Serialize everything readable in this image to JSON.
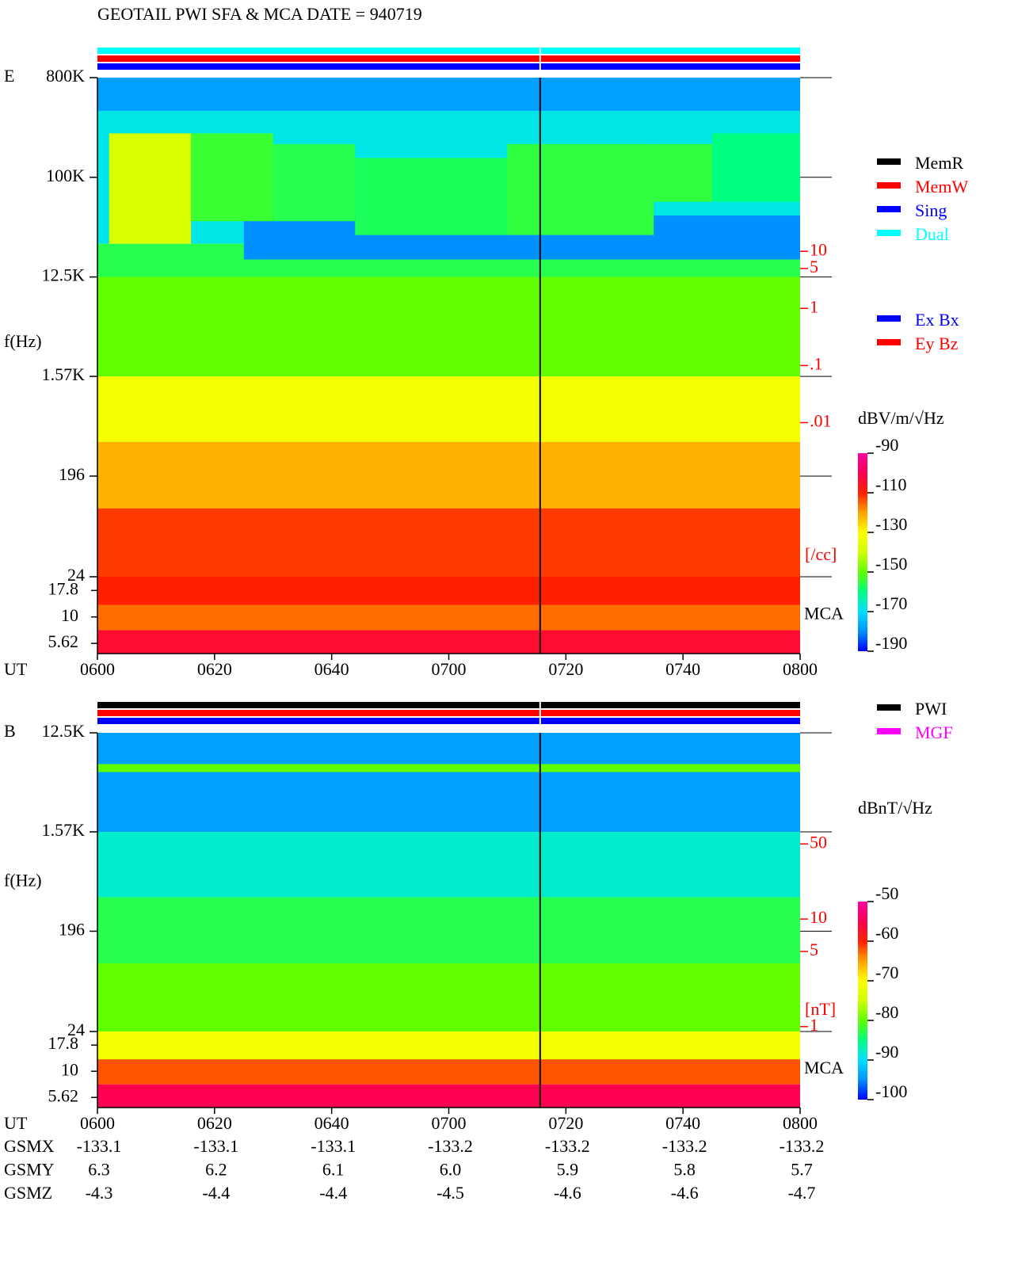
{
  "title": "GEOTAIL  PWI SFA & MCA   DATE = 940719",
  "chart_data": [
    {
      "type": "spectrogram",
      "panel_label": "E",
      "ylabel": "f(Hz)",
      "xlabel": "UT",
      "xlim": [
        360,
        480
      ],
      "xticks": [
        {
          "value": 360,
          "label": "0600"
        },
        {
          "value": 380,
          "label": "0620"
        },
        {
          "value": 400,
          "label": "0640"
        },
        {
          "value": 420,
          "label": "0700"
        },
        {
          "value": 440,
          "label": "0720"
        },
        {
          "value": 460,
          "label": "0740"
        },
        {
          "value": 480,
          "label": "0800"
        }
      ],
      "log_y": true,
      "ylim": [
        24,
        800000
      ],
      "yticks": [
        {
          "value": 800000,
          "label": "800K"
        },
        {
          "value": 100000,
          "label": "100K"
        },
        {
          "value": 12500,
          "label": "12.5K"
        },
        {
          "value": 1570,
          "label": "1.57K"
        },
        196,
        24
      ],
      "mca_label": "MCA",
      "mca_ylim": [
        4.5,
        24
      ],
      "mca_yticks": [
        17.8,
        10,
        5.62
      ],
      "y2label": "[/cc]",
      "y2lim": [
        2e-05,
        11000
      ],
      "y2ticks": [
        10,
        5,
        1,
        {
          "value": 0.1,
          "label": ".1"
        },
        {
          "value": 0.01,
          "label": ".01"
        }
      ],
      "y2color": "#ff0000",
      "colorbar_label": "dBV/m/√Hz",
      "clim": [
        -190,
        -90
      ],
      "cticks": [
        -90,
        -110,
        -130,
        -150,
        -170,
        -190
      ],
      "colormap": [
        "#0000ff",
        "#0090ff",
        "#00e0ff",
        "#00ff80",
        "#60ff00",
        "#d0ff00",
        "#ffff00",
        "#ffa000",
        "#ff2000",
        "#ff0050",
        "#ff00a0"
      ],
      "bands": [
        [
          400000,
          800000,
          -178
        ],
        [
          25000,
          400000,
          -168
        ],
        [
          12500,
          25000,
          -156
        ],
        [
          1570,
          12500,
          -150
        ],
        [
          400,
          1570,
          -132
        ],
        [
          100,
          400,
          -122
        ],
        [
          24,
          100,
          -112
        ]
      ],
      "cells": [
        [
          385,
          480,
          18000,
          45000,
          -180
        ],
        [
          362,
          376,
          25000,
          250000,
          -138
        ],
        [
          376,
          390,
          40000,
          250000,
          -154
        ],
        [
          390,
          404,
          40000,
          200000,
          -156
        ],
        [
          404,
          430,
          30000,
          150000,
          -157
        ],
        [
          430,
          455,
          30000,
          200000,
          -155
        ],
        [
          455,
          465,
          60000,
          200000,
          -155
        ],
        [
          465,
          480,
          60000,
          250000,
          -160
        ]
      ],
      "mca_bands": [
        [
          13,
          24,
          -110
        ],
        [
          7.5,
          13,
          -116
        ],
        [
          4.5,
          7.5,
          -104
        ]
      ],
      "status_bars": [
        "#00ffff",
        "#ff0000",
        "#0000ff"
      ],
      "divider_x": 435.6,
      "legends": [
        [
          {
            "name": "MemR",
            "color": "#000000"
          },
          {
            "name": "MemW",
            "color": "#ff0000"
          },
          {
            "name": "Sing",
            "color": "#0000ff"
          },
          {
            "name": "Dual",
            "color": "#00ffff"
          }
        ],
        [
          {
            "name": "Ex Bx",
            "color": "#0000ff"
          },
          {
            "name": "Ey Bz",
            "color": "#ff0000"
          }
        ]
      ]
    },
    {
      "type": "spectrogram",
      "panel_label": "B",
      "ylabel": "f(Hz)",
      "xlabel": "UT",
      "xlim": [
        360,
        480
      ],
      "xticks": [
        {
          "value": 360,
          "label": "0600"
        },
        {
          "value": 380,
          "label": "0620"
        },
        {
          "value": 400,
          "label": "0640"
        },
        {
          "value": 420,
          "label": "0700"
        },
        {
          "value": 440,
          "label": "0720"
        },
        {
          "value": 460,
          "label": "0740"
        },
        {
          "value": 480,
          "label": "0800"
        }
      ],
      "log_y": true,
      "ylim": [
        24,
        12500
      ],
      "yticks": [
        {
          "value": 12500,
          "label": "12.5K"
        },
        {
          "value": 1570,
          "label": "1.57K"
        },
        196,
        24
      ],
      "mca_label": "MCA",
      "mca_ylim": [
        4.5,
        24
      ],
      "mca_yticks": [
        17.8,
        10,
        5.62
      ],
      "y2label": "[nT]",
      "y2lim": [
        0.9,
        540
      ],
      "y2ticks": [
        50,
        10,
        5,
        1
      ],
      "y2color": "#ff0000",
      "colorbar_label": "dBnT/√Hz",
      "clim": [
        -100,
        -50
      ],
      "cticks": [
        -50,
        -60,
        -70,
        -80,
        -90,
        -100
      ],
      "colormap": [
        "#0000ff",
        "#0090ff",
        "#00e0ff",
        "#00ff80",
        "#60ff00",
        "#d0ff00",
        "#ffff00",
        "#ffa000",
        "#ff2000",
        "#ff0050",
        "#ff00a0"
      ],
      "bands": [
        [
          1570,
          12500,
          -94
        ],
        [
          400,
          1570,
          -88
        ],
        [
          100,
          400,
          -83
        ],
        [
          24,
          100,
          -80
        ],
        [
          5500,
          6500,
          -80
        ]
      ],
      "cells": [],
      "mca_bands": [
        [
          13,
          24,
          -71
        ],
        [
          7.5,
          13,
          -62
        ],
        [
          4.5,
          7.5,
          -55
        ]
      ],
      "status_bars": [
        "#000000",
        "#ff0000",
        "#0000ff"
      ],
      "divider_x": 435.6,
      "legends": [
        [
          {
            "name": "PWI",
            "color": "#000000"
          },
          {
            "name": "MGF",
            "color": "#ff00ff"
          }
        ]
      ]
    }
  ],
  "ephemeris": {
    "rows": [
      {
        "label": "GSMX",
        "values": [
          "-133.1",
          "-133.1",
          "-133.1",
          "-133.2",
          "-133.2",
          "-133.2",
          "-133.2"
        ]
      },
      {
        "label": "GSMY",
        "values": [
          "6.3",
          "6.2",
          "6.1",
          "6.0",
          "5.9",
          "5.8",
          "5.7"
        ]
      },
      {
        "label": "GSMZ",
        "values": [
          "-4.3",
          "-4.4",
          "-4.4",
          "-4.5",
          "-4.6",
          "-4.6",
          "-4.7"
        ]
      }
    ]
  }
}
